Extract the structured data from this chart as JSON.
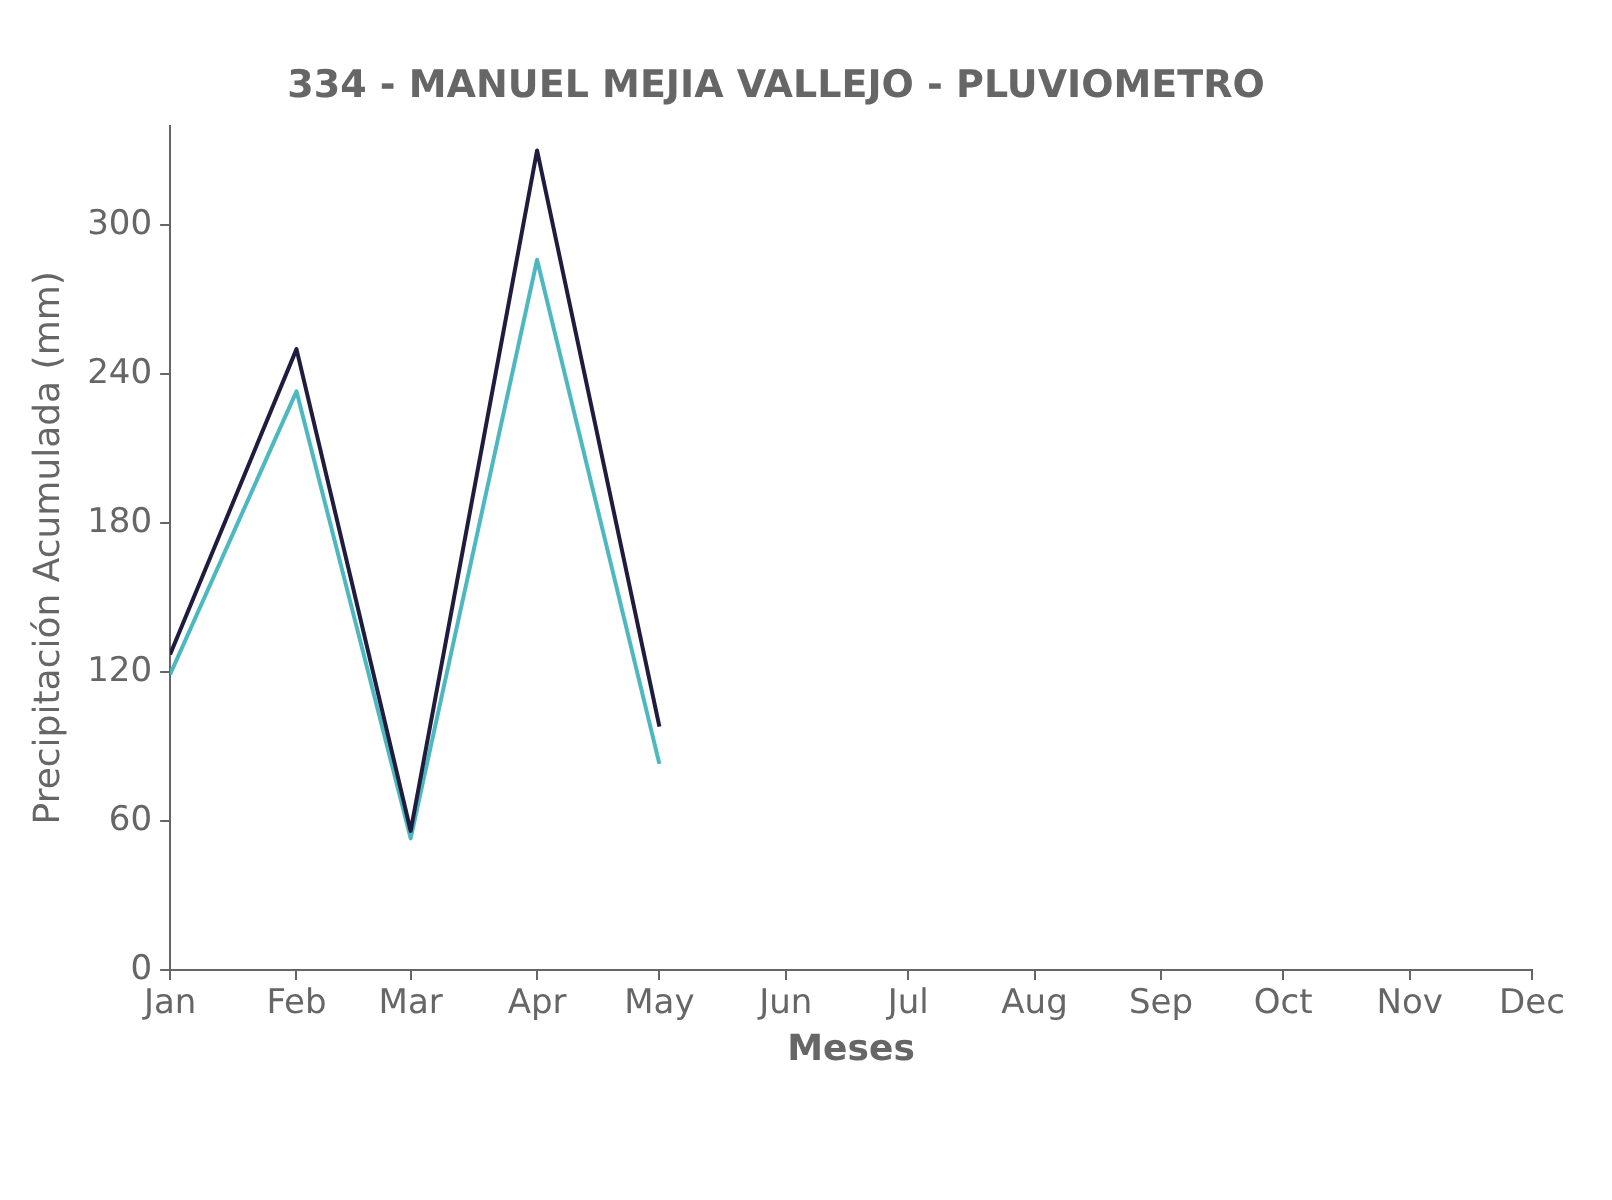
{
  "chart_data": {
    "type": "line",
    "title": "334 - MANUEL MEJIA VALLEJO - PLUVIOMETRO",
    "xlabel": "Meses",
    "ylabel": "Precipitación Acumulada (mm)",
    "x": [
      "--01-01",
      "--02-01",
      "--03-01",
      "--04-01",
      "--05-01"
    ],
    "series": [
      {
        "color": "#1f1c3d",
        "values": [
          127,
          250,
          56,
          330,
          98
        ]
      },
      {
        "color": "#4db8c0",
        "values": [
          119,
          233,
          53,
          286,
          83
        ]
      }
    ],
    "xlim": [
      "--01-01",
      "--12-01"
    ],
    "xticks": [
      {
        "value": "--01-01",
        "label": "Jan"
      },
      {
        "value": "--02-01",
        "label": "Feb"
      },
      {
        "value": "--03-01",
        "label": "Mar"
      },
      {
        "value": "--04-01",
        "label": "Apr"
      },
      {
        "value": "--05-01",
        "label": "May"
      },
      {
        "value": "--06-01",
        "label": "Jun"
      },
      {
        "value": "--07-01",
        "label": "Jul"
      },
      {
        "value": "--08-01",
        "label": "Aug"
      },
      {
        "value": "--09-01",
        "label": "Sep"
      },
      {
        "value": "--10-01",
        "label": "Oct"
      },
      {
        "value": "--11-01",
        "label": "Nov"
      },
      {
        "value": "--12-01",
        "label": "Dec"
      }
    ],
    "ylim": [
      0,
      340
    ],
    "yticks": [
      0,
      60,
      120,
      180,
      240,
      300
    ],
    "grid": false,
    "legend": false,
    "marker": "none",
    "line_style": "solid"
  }
}
